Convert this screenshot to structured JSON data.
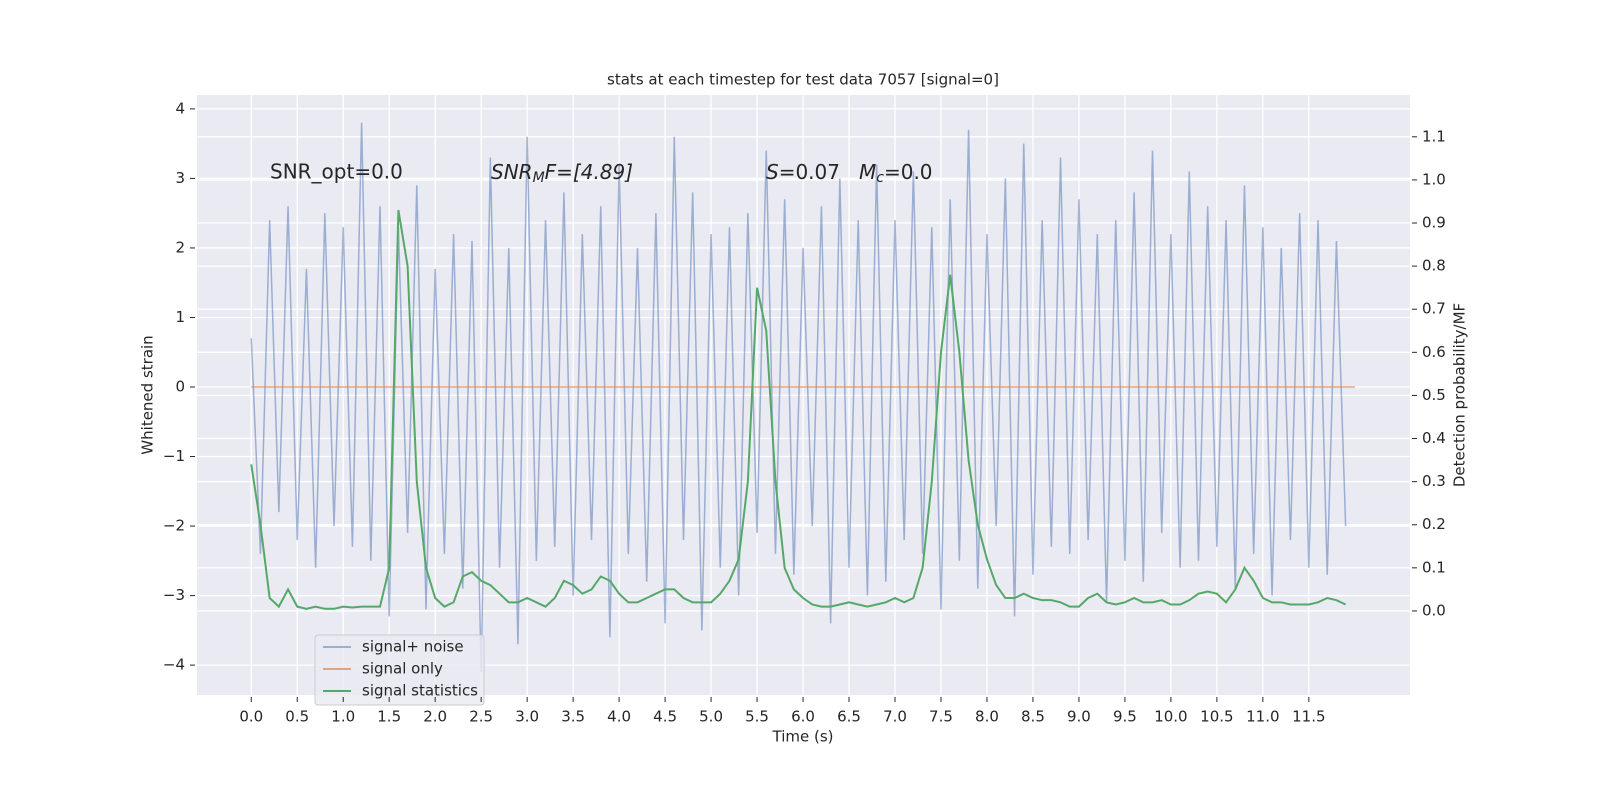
{
  "chart_data": {
    "type": "line",
    "title": "stats at each timestep for test data 7057 [signal=0]",
    "xlabel": "Time (s)",
    "ylabel": "Whitened strain",
    "y2label": "Detection probability/MF",
    "annotations": [
      "SNR_opt=0.0",
      [
        "SNR",
        "M",
        "F=[4.89]"
      ],
      [
        "S",
        "=0.07"
      ],
      [
        "M",
        "c",
        "=0.0"
      ]
    ],
    "xlim": [
      -0.59,
      12.6
    ],
    "ylim": [
      -4.43,
      4.2
    ],
    "y2lim": [
      -0.195,
      1.197
    ],
    "xticks": [
      {
        "value": 0,
        "label": "0.0"
      },
      {
        "value": 0.5,
        "label": "0.5"
      },
      {
        "value": 1,
        "label": "1.0"
      },
      {
        "value": 1.5,
        "label": "1.5"
      },
      {
        "value": 2,
        "label": "2.0"
      },
      {
        "value": 2.5,
        "label": "2.5"
      },
      {
        "value": 3,
        "label": "3.0"
      },
      {
        "value": 3.5,
        "label": "3.5"
      },
      {
        "value": 4,
        "label": "4.0"
      },
      {
        "value": 4.5,
        "label": "4.5"
      },
      {
        "value": 5,
        "label": "5.0"
      },
      {
        "value": 5.5,
        "label": "5.5"
      },
      {
        "value": 6,
        "label": "6.0"
      },
      {
        "value": 6.5,
        "label": "6.5"
      },
      {
        "value": 7,
        "label": "7.0"
      },
      {
        "value": 7.5,
        "label": "7.5"
      },
      {
        "value": 8,
        "label": "8.0"
      },
      {
        "value": 8.5,
        "label": "8.5"
      },
      {
        "value": 9,
        "label": "9.0"
      },
      {
        "value": 9.5,
        "label": "9.5"
      },
      {
        "value": 10,
        "label": "10.0"
      },
      {
        "value": 10.5,
        "label": "10.5"
      },
      {
        "value": 11,
        "label": "11.0"
      },
      {
        "value": 11.5,
        "label": "11.5"
      }
    ],
    "yticks": [
      {
        "value": -4,
        "label": "−4"
      },
      {
        "value": -3,
        "label": "−3"
      },
      {
        "value": -2,
        "label": "−2"
      },
      {
        "value": -1,
        "label": "−1"
      },
      0,
      1,
      2,
      3,
      4
    ],
    "y2ticks": [
      {
        "value": 0,
        "label": "0.0"
      },
      {
        "value": 0.1,
        "label": "0.1"
      },
      {
        "value": 0.2,
        "label": "0.2"
      },
      {
        "value": 0.3,
        "label": "0.3"
      },
      {
        "value": 0.4,
        "label": "0.4"
      },
      {
        "value": 0.5,
        "label": "0.5"
      },
      {
        "value": 0.6,
        "label": "0.6"
      },
      {
        "value": 0.7,
        "label": "0.7"
      },
      {
        "value": 0.8,
        "label": "0.8"
      },
      {
        "value": 0.9,
        "label": "0.9"
      },
      {
        "value": 1,
        "label": "1.0"
      },
      {
        "value": 1.1,
        "label": "1.1"
      }
    ],
    "grid": true,
    "legend": "lower left",
    "x": [
      0,
      0.1,
      0.2,
      0.3,
      0.4,
      0.5,
      0.6,
      0.7,
      0.8,
      0.9,
      1,
      1.1,
      1.2,
      1.3,
      1.4,
      1.5,
      1.6,
      1.7,
      1.8,
      1.9,
      2,
      2.1,
      2.2,
      2.3,
      2.4,
      2.5,
      2.6,
      2.7,
      2.8,
      2.9,
      3,
      3.1,
      3.2,
      3.3,
      3.4,
      3.5,
      3.6,
      3.7,
      3.8,
      3.9,
      4,
      4.1,
      4.2,
      4.3,
      4.4,
      4.5,
      4.6,
      4.7,
      4.8,
      4.9,
      5,
      5.1,
      5.2,
      5.3,
      5.4,
      5.5,
      5.6,
      5.7,
      5.8,
      5.9,
      6,
      6.1,
      6.2,
      6.3,
      6.4,
      6.5,
      6.6,
      6.7,
      6.8,
      6.9,
      7,
      7.1,
      7.2,
      7.3,
      7.4,
      7.5,
      7.6,
      7.7,
      7.8,
      7.9,
      8,
      8.1,
      8.2,
      8.3,
      8.4,
      8.5,
      8.6,
      8.7,
      8.8,
      8.9,
      9,
      9.1,
      9.2,
      9.3,
      9.4,
      9.5,
      9.6,
      9.7,
      9.8,
      9.9,
      10,
      10.1,
      10.2,
      10.3,
      10.4,
      10.5,
      10.6,
      10.7,
      10.8,
      10.9,
      11,
      11.1,
      11.2,
      11.3,
      11.4,
      11.5,
      11.6,
      11.7,
      11.8,
      11.9
    ],
    "series": [
      {
        "name": "signal+ noise",
        "color": "#4c72b0",
        "values": [
          0.7,
          -2.4,
          2.4,
          -1.8,
          2.6,
          -2.2,
          1.7,
          -2.6,
          2.5,
          -2.0,
          2.3,
          -2.3,
          3.8,
          -2.5,
          2.6,
          -3.3,
          2.3,
          -2.1,
          2.9,
          -3.2,
          1.7,
          -2.4,
          2.2,
          -2.9,
          2.1,
          -4.1,
          3.3,
          -2.6,
          2.0,
          -3.7,
          3.6,
          -2.5,
          2.4,
          -2.3,
          2.8,
          -3.0,
          2.2,
          -2.2,
          2.6,
          -3.6,
          3.2,
          -2.4,
          2.0,
          -2.8,
          2.5,
          -3.4,
          3.6,
          -2.2,
          2.8,
          -3.5,
          2.2,
          -2.6,
          2.3,
          -3.0,
          2.5,
          -2.1,
          3.4,
          -2.4,
          2.7,
          -2.7,
          2.0,
          -2.0,
          2.6,
          -3.4,
          3.0,
          -2.6,
          2.4,
          -3.0,
          3.2,
          -2.8,
          2.4,
          -2.2,
          3.1,
          -2.4,
          2.3,
          -3.2,
          2.7,
          -2.5,
          3.7,
          -2.9,
          2.2,
          -2.0,
          3.0,
          -3.3,
          3.5,
          -2.7,
          2.4,
          -2.3,
          3.3,
          -2.4,
          2.7,
          -2.2,
          2.2,
          -3.1,
          2.4,
          -2.5,
          2.8,
          -2.8,
          3.4,
          -2.1,
          2.2,
          -2.6,
          3.1,
          -2.5,
          2.6,
          -2.3,
          2.4,
          -2.9,
          2.9,
          -2.4,
          2.3,
          -3.0,
          2.0,
          -2.2,
          2.5,
          -2.6,
          2.4,
          -2.7,
          2.1,
          -2.0
        ]
      },
      {
        "name": "signal only",
        "color": "#dd8452",
        "x": [
          0,
          12.0
        ],
        "values": [
          0,
          0
        ]
      },
      {
        "name": "signal statistics",
        "color": "#55a868",
        "axis": "y2",
        "values": [
          0.34,
          0.2,
          0.03,
          0.01,
          0.05,
          0.01,
          0.005,
          0.01,
          0.005,
          0.005,
          0.01,
          0.008,
          0.01,
          0.01,
          0.01,
          0.1,
          0.93,
          0.8,
          0.3,
          0.1,
          0.03,
          0.01,
          0.02,
          0.08,
          0.09,
          0.07,
          0.06,
          0.04,
          0.02,
          0.02,
          0.03,
          0.02,
          0.01,
          0.03,
          0.07,
          0.06,
          0.04,
          0.05,
          0.08,
          0.07,
          0.04,
          0.02,
          0.02,
          0.03,
          0.04,
          0.05,
          0.05,
          0.03,
          0.02,
          0.02,
          0.02,
          0.04,
          0.07,
          0.12,
          0.3,
          0.75,
          0.65,
          0.3,
          0.1,
          0.05,
          0.03,
          0.015,
          0.01,
          0.01,
          0.015,
          0.02,
          0.015,
          0.01,
          0.015,
          0.02,
          0.03,
          0.02,
          0.03,
          0.1,
          0.3,
          0.6,
          0.78,
          0.6,
          0.35,
          0.2,
          0.12,
          0.06,
          0.03,
          0.03,
          0.04,
          0.03,
          0.025,
          0.025,
          0.02,
          0.01,
          0.01,
          0.03,
          0.04,
          0.02,
          0.015,
          0.02,
          0.03,
          0.02,
          0.02,
          0.025,
          0.015,
          0.015,
          0.025,
          0.04,
          0.045,
          0.04,
          0.02,
          0.05,
          0.1,
          0.07,
          0.03,
          0.02,
          0.02,
          0.015,
          0.015,
          0.015,
          0.02,
          0.03,
          0.025,
          0.015
        ]
      }
    ]
  }
}
